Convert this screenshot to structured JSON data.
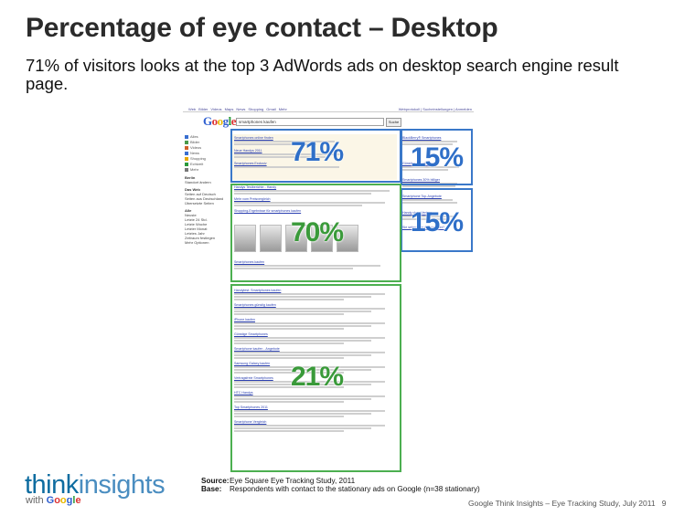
{
  "slide": {
    "title": "Percentage of eye contact – Desktop",
    "subtitle": "71% of visitors looks at the top 3 AdWords ads on desktop search engine result page."
  },
  "screenshot": {
    "top_nav": [
      "Web",
      "Bilder",
      "Videos",
      "Maps",
      "News",
      "Shopping",
      "Gmail",
      "Mehr"
    ],
    "top_nav_right": "Webprotokoll | Sucheinstellungen | Anmelden",
    "logo": "Google",
    "search_query": "smartphones kaufen",
    "search_button": "Suche",
    "left_nav": [
      "Alles",
      "Bilder",
      "Videos",
      "News",
      "Shopping",
      "Echtzeit",
      "Mehr"
    ],
    "left_headings": [
      "Berlin",
      "Das Web",
      "Alle"
    ],
    "left_texts": [
      "Standort ändern",
      "Seiten auf Deutsch",
      "Seiten aus Deutschland",
      "Übersetzte Seiten",
      "Neuste",
      "Letzte 24 Std.",
      "Letzte Woche",
      "Letzter Monat",
      "Letztes Jahr",
      "Zeitraum festlegen",
      "Mehr Optionen"
    ],
    "ad_links": [
      "Smartphones online finden",
      "Neue Handys 2011",
      "Smartphones Exclusiv"
    ],
    "shopping_heading": "Shopping-Ergebnisse für smartphones kaufen",
    "organic_links": [
      "Handys Testberichte - Handy",
      "Mehr vom Preisvergleich",
      "Smartphones kaufen",
      "Handytest: Smartphones kaufen",
      "Smartphones günstig kaufen",
      "iPhone kaufen",
      "Günstige Smartphones",
      "Smartphone kaufen - Angebote",
      "Samsung Galaxy kaufen",
      "Vertragsfreie Smartphones",
      "HTC Handys",
      "Top Smartphones 2011",
      "Smartphone Vergleich"
    ],
    "right_links": [
      "BlackBerry® Smartphones",
      "Günstige Smartphones",
      "Smartphones 30% billiger",
      "Smartphone Top-Angebote",
      "Handy ohne Vertrag"
    ],
    "right_footer": "Sie sehen Ihre Anzeige hier?"
  },
  "regions": {
    "top_ads_pct": "71%",
    "right_top_pct": "15%",
    "right_mid_pct": "15%",
    "middle_pct": "70%",
    "bottom_pct": "21%"
  },
  "colors": {
    "blue": "#3a78c9",
    "green": "#4caf50"
  },
  "branding": {
    "think": "think",
    "insights": "insights",
    "with": "with",
    "google": "Google"
  },
  "source": {
    "source_label": "Source:",
    "source_text": "Eye Square Eye Tracking Study, 2011",
    "base_label": "Base:",
    "base_text": "Respondents with contact to the stationary ads on Google (n=38 stationary)"
  },
  "footer": {
    "text": "Google Think Insights – Eye Tracking Study, July 2011",
    "page": "9"
  }
}
